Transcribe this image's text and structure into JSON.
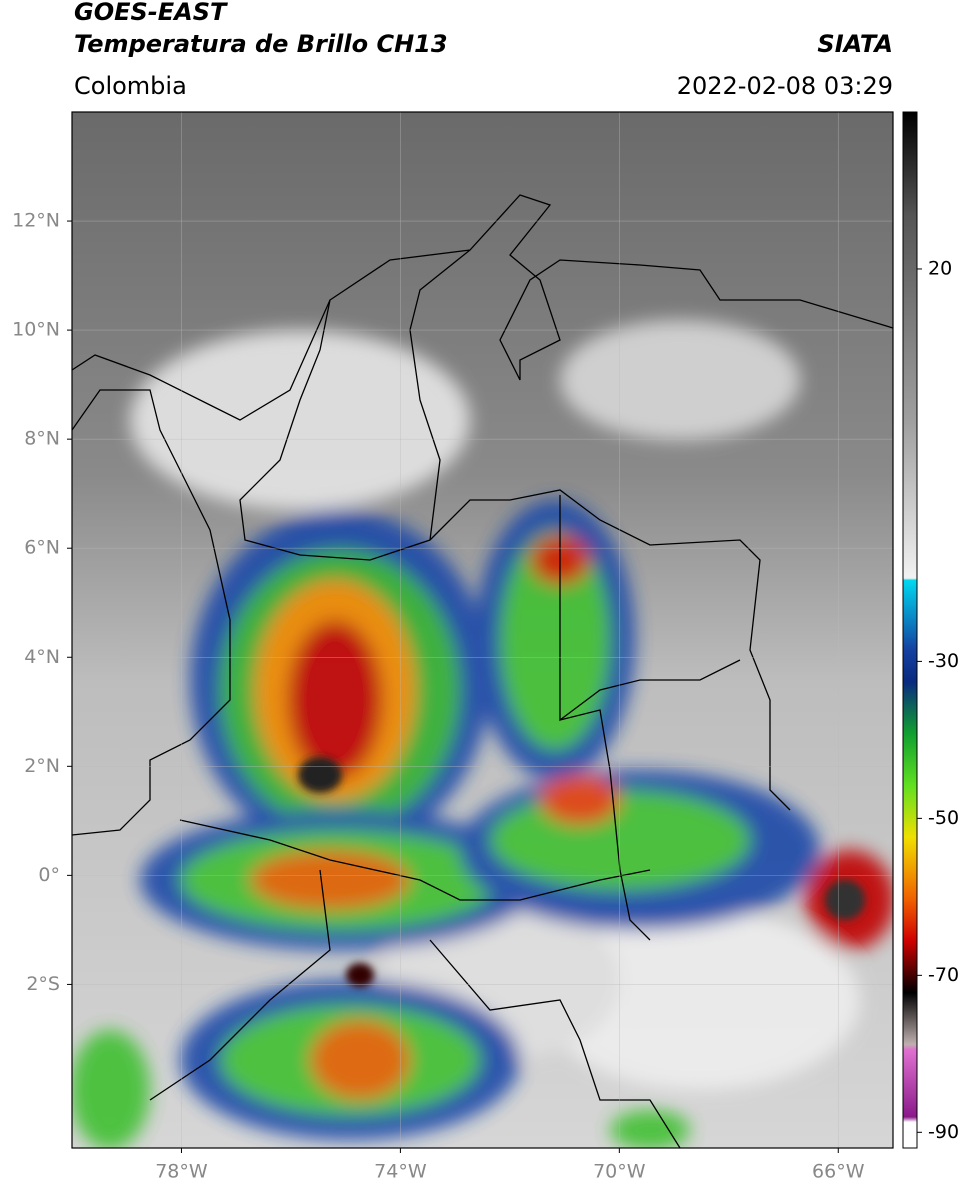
{
  "header": {
    "source": "GOES-EAST",
    "product": "Temperatura de Brillo CH13",
    "agency": "SIATA",
    "region": "Colombia",
    "datetime": "2022-02-08 03:29"
  },
  "map": {
    "xlim": [
      -80,
      -65
    ],
    "ylim": [
      -5,
      14
    ],
    "lat_ticks": [
      {
        "value": 12,
        "label": "12°N"
      },
      {
        "value": 10,
        "label": "10°N"
      },
      {
        "value": 8,
        "label": "8°N"
      },
      {
        "value": 6,
        "label": "6°N"
      },
      {
        "value": 4,
        "label": "4°N"
      },
      {
        "value": 2,
        "label": "2°N"
      },
      {
        "value": 0,
        "label": "0°"
      },
      {
        "value": -2,
        "label": "2°S"
      }
    ],
    "lon_ticks": [
      {
        "value": -78,
        "label": "78°W"
      },
      {
        "value": -74,
        "label": "74°W"
      },
      {
        "value": -70,
        "label": "70°W"
      },
      {
        "value": -66,
        "label": "66°W"
      }
    ]
  },
  "colorbar": {
    "lim": [
      -92,
      40
    ],
    "ticks": [
      20,
      -30,
      -50,
      -70,
      -90
    ]
  }
}
